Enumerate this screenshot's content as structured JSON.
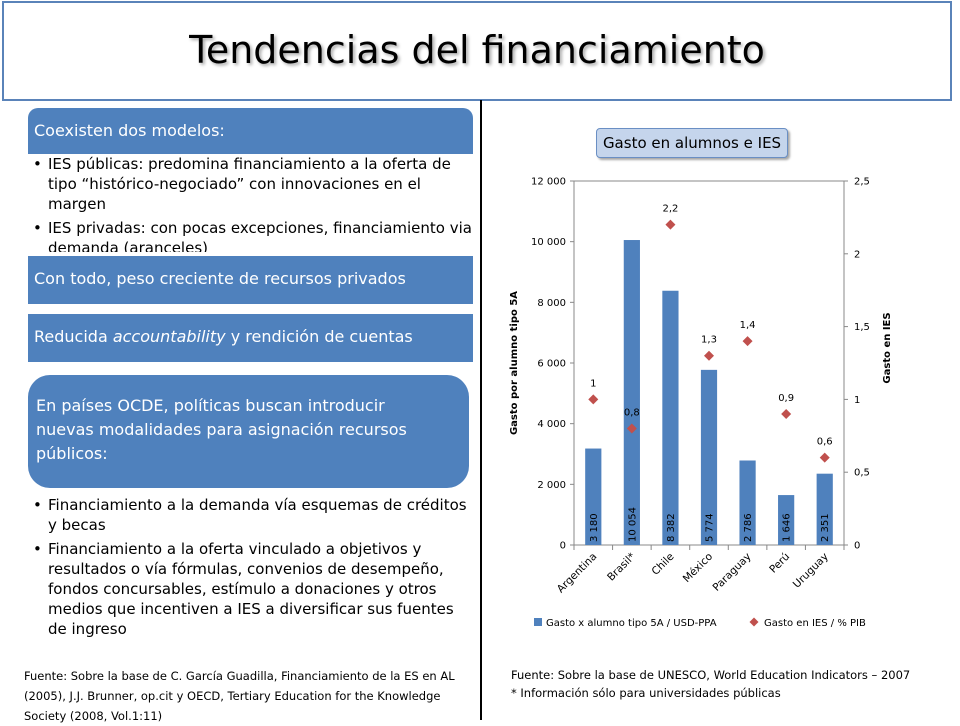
{
  "title": "Tendencias del financiamiento",
  "left": {
    "header1": "Coexisten dos modelos:",
    "bullets1": [
      "IES públicas: predomina financiamiento a la oferta de tipo “histórico-negociado” con innovaciones en el margen",
      "IES privadas: con pocas excepciones, financiamiento via demanda (aranceles)"
    ],
    "header2": "Con todo, peso creciente de recursos privados",
    "header3_pre": "Reducida ",
    "header3_em": "accountability",
    "header3_post": " y rendición de cuentas",
    "header4": "En países OCDE, políticas buscan introducir nuevas modalidades para asignación recursos públicos:",
    "bullets2": [
      "Financiamiento a la demanda vía esquemas de créditos y becas",
      "Financiamiento a la oferta vinculado a objetivos y resultados o vía fórmulas, convenios de desempeño, fondos concursables, estímulo a donaciones y otros medios que incentiven a IES a diversificar sus fuentes de ingreso"
    ],
    "source": "Fuente: Sobre la base de C. García Guadilla, Financiamiento de la ES en AL (2005), J.J. Brunner, op.cit y OECD, Tertiary Education for the Knowledge Society (2008, Vol.1:11)"
  },
  "right": {
    "badge": "Gasto en alumnos e IES",
    "source_line1": "Fuente: Sobre la base de UNESCO, World Education Indicators – 2007",
    "source_line2": "* Información sólo para universidades públicas"
  },
  "colors": {
    "bar": "#4f81bd",
    "marker": "#c0504d",
    "header": "#4f81bd"
  },
  "chart_data": {
    "type": "bar",
    "categories": [
      "Argentina",
      "Brasil*",
      "Chile",
      "México",
      "Paraguay",
      "Perú",
      "Uruguay"
    ],
    "series": [
      {
        "name": "Gasto x alumno tipo 5A / USD-PPA",
        "axis": "left",
        "type": "bar",
        "values": [
          3180,
          10054,
          8382,
          5774,
          2786,
          1646,
          2351
        ],
        "labels": [
          "3 180",
          "10 054",
          "8 382",
          "5 774",
          "2 786",
          "1 646",
          "2 351"
        ]
      },
      {
        "name": "Gasto en IES / % PIB",
        "axis": "right",
        "type": "scatter",
        "values": [
          1,
          0.8,
          2.2,
          1.3,
          1.4,
          0.9,
          0.6
        ],
        "labels": [
          "1",
          "0,8",
          "2,2",
          "1,3",
          "1,4",
          "0,9",
          "0,6"
        ]
      }
    ],
    "ylabel": "Gasto por alumno tipo 5A",
    "y2label": "Gasto en IES",
    "ylim": [
      0,
      12000
    ],
    "y2lim": [
      0,
      2.5
    ],
    "yticks": [
      "0",
      "2 000",
      "4 000",
      "6 000",
      "8 000",
      "10 000",
      "12 000"
    ],
    "y2ticks": [
      "0",
      "0,5",
      "1",
      "1,5",
      "2",
      "2,5"
    ],
    "legend_position": "bottom"
  }
}
